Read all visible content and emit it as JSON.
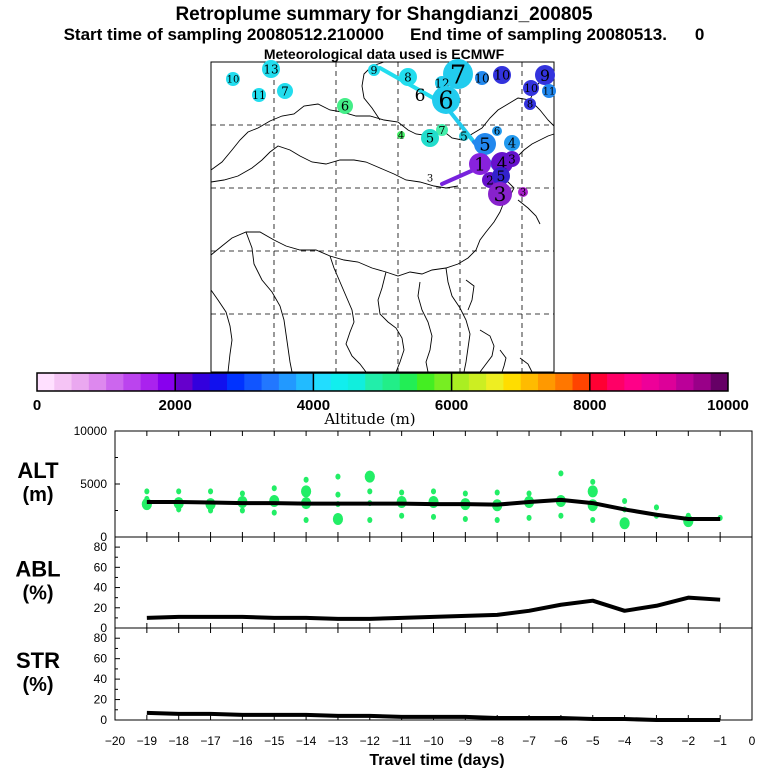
{
  "header": {
    "title": "Retroplume summary for Shangdianzi_200805",
    "start_label": "Start time of sampling 20080512.210000",
    "end_label": "End time of sampling 20080513.",
    "end_suffix": "0",
    "met_label": "Meteorological data used is ECMWF"
  },
  "map": {
    "cluster_labels": [
      {
        "text": "10",
        "color": "#22ddee"
      },
      {
        "text": "13",
        "color": "#22ddee"
      },
      {
        "text": "11",
        "color": "#22ddee"
      },
      {
        "text": "7",
        "color": "#22ddee"
      },
      {
        "text": "9",
        "color": "#22ddee"
      },
      {
        "text": "8",
        "color": "#22ddee"
      },
      {
        "text": "7",
        "color": "#22ccee"
      },
      {
        "text": "12",
        "color": "#22ccee"
      },
      {
        "text": "6",
        "color": "#22ccee"
      },
      {
        "text": "6",
        "color": "#ffffff"
      },
      {
        "text": "10",
        "color": "#2288ee"
      },
      {
        "text": "10",
        "color": "#3333dd"
      },
      {
        "text": "9",
        "color": "#3333dd"
      },
      {
        "text": "8",
        "color": "#3333dd"
      },
      {
        "text": "10",
        "color": "#3333dd"
      },
      {
        "text": "11",
        "color": "#2288ee"
      },
      {
        "text": "6",
        "color": "#44ee88"
      },
      {
        "text": "4",
        "color": "#44ee66"
      },
      {
        "text": "7",
        "color": "#44eeaa"
      },
      {
        "text": "5",
        "color": "#22ddcc"
      },
      {
        "text": "5",
        "color": "#22ccdd"
      },
      {
        "text": "6",
        "color": "#2299ee"
      },
      {
        "text": "5",
        "color": "#2288ee"
      },
      {
        "text": "4",
        "color": "#2299ee"
      },
      {
        "text": "1",
        "color": "#8822dd"
      },
      {
        "text": "4",
        "color": "#6611cc"
      },
      {
        "text": "3",
        "color": "#6611cc"
      },
      {
        "text": "2",
        "color": "#6611cc"
      },
      {
        "text": "5",
        "color": "#3322cc"
      },
      {
        "text": "3",
        "color": "#8822cc"
      },
      {
        "text": "3",
        "color": "#aa22cc"
      },
      {
        "text": "3",
        "color": "#22ccee"
      }
    ]
  },
  "colorbar": {
    "ticks": [
      "0",
      "2000",
      "4000",
      "6000",
      "8000",
      "10000"
    ],
    "label": "Altitude (m)",
    "colors": [
      "#ffe0ff",
      "#f5c4f5",
      "#eaa8f0",
      "#dd88ee",
      "#cc66ee",
      "#bb44ee",
      "#aa22ee",
      "#8800ee",
      "#6600cc",
      "#3300dd",
      "#1111ee",
      "#0033ff",
      "#1155ff",
      "#2277ff",
      "#2299ff",
      "#22bbff",
      "#22ddff",
      "#11eeee",
      "#11eedd",
      "#22eeaa",
      "#22ee88",
      "#22ee55",
      "#44ee22",
      "#77ee22",
      "#aaee22",
      "#ccee22",
      "#eeee22",
      "#ffdd00",
      "#ffbb00",
      "#ff9900",
      "#ff7700",
      "#ff4400",
      "#ff0033",
      "#ff0066",
      "#ff0088",
      "#ee0099",
      "#dd0099",
      "#bb0099",
      "#990088",
      "#660066"
    ]
  },
  "chart_data": {
    "type": "line",
    "xlabel": "Travel time (days)",
    "x_ticks": [
      "−20",
      "−19",
      "−18",
      "−17",
      "−16",
      "−15",
      "−14",
      "−13",
      "−12",
      "−11",
      "−10",
      "−9",
      "−8",
      "−7",
      "−6",
      "−5",
      "−4",
      "−3",
      "−2",
      "−1",
      "0"
    ],
    "xlim": [
      -20,
      0
    ],
    "x": [
      -19,
      -18,
      -17,
      -16,
      -15,
      -14,
      -13,
      -12,
      -11,
      -10,
      -9,
      -8,
      -7,
      -6,
      -5,
      -4,
      -3,
      -2,
      -1
    ],
    "panels": [
      {
        "label_top": "ALT",
        "label_bottom": "(m)",
        "ylim": [
          0,
          10000
        ],
        "yticks": [
          "10000",
          "5000",
          "0"
        ],
        "line": [
          3300,
          3300,
          3250,
          3200,
          3200,
          3150,
          3150,
          3150,
          3150,
          3100,
          3100,
          3050,
          3300,
          3500,
          3200,
          2600,
          2100,
          1700,
          1700
        ],
        "scatter": [
          {
            "x": -19,
            "y": 3100
          },
          {
            "x": -19,
            "y": 4300
          },
          {
            "x": -19,
            "y": 3600
          },
          {
            "x": -18,
            "y": 3200
          },
          {
            "x": -18,
            "y": 4300
          },
          {
            "x": -18,
            "y": 2600
          },
          {
            "x": -17,
            "y": 3100
          },
          {
            "x": -17,
            "y": 4300
          },
          {
            "x": -17,
            "y": 2500
          },
          {
            "x": -16,
            "y": 3300
          },
          {
            "x": -16,
            "y": 4100
          },
          {
            "x": -16,
            "y": 2500
          },
          {
            "x": -15,
            "y": 3400
          },
          {
            "x": -15,
            "y": 4600
          },
          {
            "x": -15,
            "y": 2300
          },
          {
            "x": -14,
            "y": 3200
          },
          {
            "x": -14,
            "y": 5400
          },
          {
            "x": -14,
            "y": 1600
          },
          {
            "x": -14,
            "y": 4300
          },
          {
            "x": -13,
            "y": 3100
          },
          {
            "x": -13,
            "y": 5700
          },
          {
            "x": -13,
            "y": 1700
          },
          {
            "x": -13,
            "y": 4000
          },
          {
            "x": -12,
            "y": 3200
          },
          {
            "x": -12,
            "y": 5700
          },
          {
            "x": -12,
            "y": 1600
          },
          {
            "x": -12,
            "y": 4300
          },
          {
            "x": -11,
            "y": 3300
          },
          {
            "x": -11,
            "y": 2000
          },
          {
            "x": -11,
            "y": 4200
          },
          {
            "x": -10,
            "y": 3300
          },
          {
            "x": -10,
            "y": 1900
          },
          {
            "x": -10,
            "y": 4300
          },
          {
            "x": -9,
            "y": 3100
          },
          {
            "x": -9,
            "y": 1700
          },
          {
            "x": -9,
            "y": 4100
          },
          {
            "x": -8,
            "y": 3000
          },
          {
            "x": -8,
            "y": 1600
          },
          {
            "x": -8,
            "y": 4200
          },
          {
            "x": -7,
            "y": 3300
          },
          {
            "x": -7,
            "y": 1800
          },
          {
            "x": -7,
            "y": 4100
          },
          {
            "x": -6,
            "y": 3400
          },
          {
            "x": -6,
            "y": 6000
          },
          {
            "x": -6,
            "y": 2000
          },
          {
            "x": -5,
            "y": 3000
          },
          {
            "x": -5,
            "y": 5200
          },
          {
            "x": -5,
            "y": 1600
          },
          {
            "x": -5,
            "y": 4300
          },
          {
            "x": -4,
            "y": 2600
          },
          {
            "x": -4,
            "y": 3400
          },
          {
            "x": -4,
            "y": 1300
          },
          {
            "x": -3,
            "y": 2000
          },
          {
            "x": -3,
            "y": 2800
          },
          {
            "x": -2,
            "y": 1500
          },
          {
            "x": -2,
            "y": 2000
          },
          {
            "x": -1,
            "y": 1800
          }
        ]
      },
      {
        "label_top": "ABL",
        "label_bottom": "(%)",
        "ylim": [
          0,
          90
        ],
        "yticks": [
          "80",
          "60",
          "40",
          "20",
          "0"
        ],
        "line": [
          10,
          11,
          11,
          11,
          10,
          10,
          9,
          9,
          10,
          11,
          12,
          13,
          17,
          23,
          27,
          17,
          22,
          30,
          28
        ]
      },
      {
        "label_top": "STR",
        "label_bottom": "(%)",
        "ylim": [
          0,
          90
        ],
        "yticks": [
          "80",
          "60",
          "40",
          "20",
          "0"
        ],
        "line": [
          7,
          6,
          6,
          5,
          5,
          5,
          4,
          4,
          3,
          3,
          3,
          2,
          2,
          2,
          1,
          1,
          0,
          0,
          0
        ]
      }
    ]
  }
}
